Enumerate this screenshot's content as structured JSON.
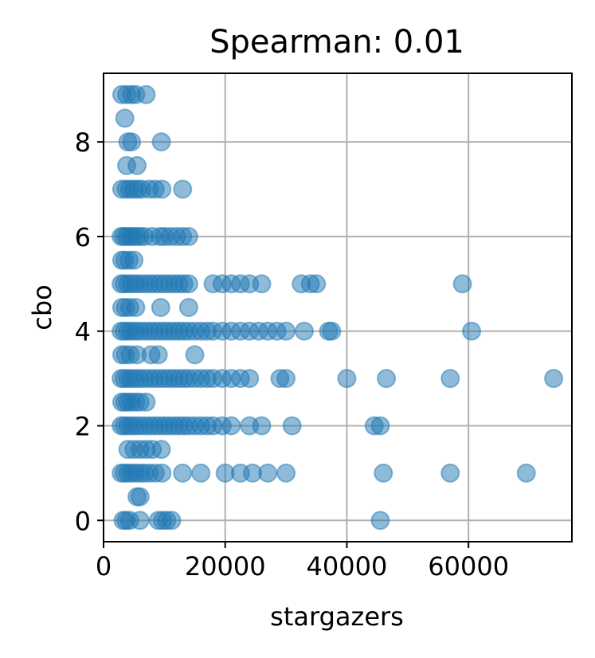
{
  "chart_data": {
    "type": "scatter",
    "title": "Spearman: 0.01",
    "xlabel": "stargazers",
    "ylabel": "cbo",
    "xlim": [
      0,
      77000
    ],
    "ylim": [
      -0.45,
      9.45
    ],
    "xticks": [
      0,
      20000,
      40000,
      60000
    ],
    "xtick_labels": [
      "0",
      "20000",
      "40000",
      "60000"
    ],
    "yticks": [
      0,
      2,
      4,
      6,
      8
    ],
    "ytick_labels": [
      "0",
      "2",
      "4",
      "6",
      "8"
    ],
    "grid": true,
    "marker_color": "#1f77b4",
    "marker_alpha": 0.5,
    "series": [
      {
        "points": [
          [
            3000,
            9
          ],
          [
            3800,
            9
          ],
          [
            4600,
            9
          ],
          [
            5300,
            9
          ],
          [
            7000,
            9
          ],
          [
            3500,
            8.5
          ],
          [
            4000,
            8
          ],
          [
            4600,
            8
          ],
          [
            9500,
            8
          ],
          [
            3800,
            7.5
          ],
          [
            5500,
            7.5
          ],
          [
            3000,
            7
          ],
          [
            3700,
            7
          ],
          [
            4300,
            7
          ],
          [
            5000,
            7
          ],
          [
            5600,
            7
          ],
          [
            6300,
            7
          ],
          [
            7500,
            7
          ],
          [
            8500,
            7
          ],
          [
            9600,
            7
          ],
          [
            13000,
            7
          ],
          [
            2900,
            6
          ],
          [
            3300,
            6
          ],
          [
            3800,
            6
          ],
          [
            4300,
            6
          ],
          [
            4800,
            6
          ],
          [
            5400,
            6
          ],
          [
            6000,
            6
          ],
          [
            6700,
            6
          ],
          [
            8000,
            6
          ],
          [
            9300,
            6
          ],
          [
            10000,
            6
          ],
          [
            11000,
            6
          ],
          [
            12000,
            6
          ],
          [
            13000,
            6
          ],
          [
            14000,
            6
          ],
          [
            3000,
            5.5
          ],
          [
            3500,
            5.5
          ],
          [
            4200,
            5.5
          ],
          [
            5000,
            5.5
          ],
          [
            2900,
            5
          ],
          [
            3400,
            5
          ],
          [
            4000,
            5
          ],
          [
            4600,
            5
          ],
          [
            5300,
            5
          ],
          [
            6000,
            5
          ],
          [
            6800,
            5
          ],
          [
            7600,
            5
          ],
          [
            8400,
            5
          ],
          [
            9200,
            5
          ],
          [
            10000,
            5
          ],
          [
            10800,
            5
          ],
          [
            11600,
            5
          ],
          [
            12400,
            5
          ],
          [
            13200,
            5
          ],
          [
            14000,
            5
          ],
          [
            18000,
            5
          ],
          [
            19500,
            5
          ],
          [
            21000,
            5
          ],
          [
            22500,
            5
          ],
          [
            24000,
            5
          ],
          [
            26000,
            5
          ],
          [
            32500,
            5
          ],
          [
            34000,
            5
          ],
          [
            35000,
            5
          ],
          [
            59000,
            5
          ],
          [
            3000,
            4.5
          ],
          [
            3600,
            4.5
          ],
          [
            4300,
            4.5
          ],
          [
            5300,
            4.5
          ],
          [
            9400,
            4.5
          ],
          [
            14000,
            4.5
          ],
          [
            2900,
            4
          ],
          [
            3400,
            4
          ],
          [
            4000,
            4
          ],
          [
            4600,
            4
          ],
          [
            5300,
            4
          ],
          [
            6000,
            4
          ],
          [
            6800,
            4
          ],
          [
            7600,
            4
          ],
          [
            8400,
            4
          ],
          [
            9200,
            4
          ],
          [
            10000,
            4
          ],
          [
            10800,
            4
          ],
          [
            11600,
            4
          ],
          [
            12400,
            4
          ],
          [
            13200,
            4
          ],
          [
            14000,
            4
          ],
          [
            15000,
            4
          ],
          [
            16000,
            4
          ],
          [
            17000,
            4
          ],
          [
            18000,
            4
          ],
          [
            19500,
            4
          ],
          [
            21000,
            4
          ],
          [
            22500,
            4
          ],
          [
            24000,
            4
          ],
          [
            25500,
            4
          ],
          [
            27000,
            4
          ],
          [
            28500,
            4
          ],
          [
            30000,
            4
          ],
          [
            33000,
            4
          ],
          [
            37000,
            4
          ],
          [
            37500,
            4
          ],
          [
            60500,
            4
          ],
          [
            3000,
            3.5
          ],
          [
            3600,
            3.5
          ],
          [
            4400,
            3.5
          ],
          [
            5500,
            3.5
          ],
          [
            7800,
            3.5
          ],
          [
            9000,
            3.5
          ],
          [
            15000,
            3.5
          ],
          [
            2900,
            3
          ],
          [
            3400,
            3
          ],
          [
            4000,
            3
          ],
          [
            4600,
            3
          ],
          [
            5300,
            3
          ],
          [
            6000,
            3
          ],
          [
            6800,
            3
          ],
          [
            7600,
            3
          ],
          [
            8400,
            3
          ],
          [
            9200,
            3
          ],
          [
            10000,
            3
          ],
          [
            10800,
            3
          ],
          [
            11600,
            3
          ],
          [
            12400,
            3
          ],
          [
            13200,
            3
          ],
          [
            14000,
            3
          ],
          [
            15000,
            3
          ],
          [
            16000,
            3
          ],
          [
            17000,
            3
          ],
          [
            18000,
            3
          ],
          [
            19500,
            3
          ],
          [
            21000,
            3
          ],
          [
            22500,
            3
          ],
          [
            24000,
            3
          ],
          [
            29000,
            3
          ],
          [
            30000,
            3
          ],
          [
            40000,
            3
          ],
          [
            46500,
            3
          ],
          [
            57000,
            3
          ],
          [
            74000,
            3
          ],
          [
            3000,
            2.5
          ],
          [
            3500,
            2.5
          ],
          [
            4000,
            2.5
          ],
          [
            4600,
            2.5
          ],
          [
            5300,
            2.5
          ],
          [
            6000,
            2.5
          ],
          [
            7000,
            2.5
          ],
          [
            2900,
            2
          ],
          [
            3400,
            2
          ],
          [
            4000,
            2
          ],
          [
            4600,
            2
          ],
          [
            5300,
            2
          ],
          [
            6000,
            2
          ],
          [
            6800,
            2
          ],
          [
            7600,
            2
          ],
          [
            8400,
            2
          ],
          [
            9200,
            2
          ],
          [
            10000,
            2
          ],
          [
            10800,
            2
          ],
          [
            11600,
            2
          ],
          [
            12400,
            2
          ],
          [
            13200,
            2
          ],
          [
            14000,
            2
          ],
          [
            15000,
            2
          ],
          [
            16000,
            2
          ],
          [
            17000,
            2
          ],
          [
            18000,
            2
          ],
          [
            19500,
            2
          ],
          [
            21000,
            2
          ],
          [
            24000,
            2
          ],
          [
            26000,
            2
          ],
          [
            31000,
            2
          ],
          [
            44500,
            2
          ],
          [
            45500,
            2
          ],
          [
            4000,
            1.5
          ],
          [
            5000,
            1.5
          ],
          [
            6000,
            1.5
          ],
          [
            7000,
            1.5
          ],
          [
            8000,
            1.5
          ],
          [
            9500,
            1.5
          ],
          [
            2900,
            1
          ],
          [
            3400,
            1
          ],
          [
            4000,
            1
          ],
          [
            4600,
            1
          ],
          [
            5300,
            1
          ],
          [
            6000,
            1
          ],
          [
            6700,
            1
          ],
          [
            7500,
            1
          ],
          [
            8500,
            1
          ],
          [
            9600,
            1
          ],
          [
            13000,
            1
          ],
          [
            16000,
            1
          ],
          [
            20000,
            1
          ],
          [
            22500,
            1
          ],
          [
            24500,
            1
          ],
          [
            27000,
            1
          ],
          [
            30000,
            1
          ],
          [
            46000,
            1
          ],
          [
            57000,
            1
          ],
          [
            69500,
            1
          ],
          [
            5500,
            0.5
          ],
          [
            6000,
            0.5
          ],
          [
            3200,
            0
          ],
          [
            3700,
            0
          ],
          [
            4300,
            0
          ],
          [
            6000,
            0
          ],
          [
            9000,
            0
          ],
          [
            9700,
            0
          ],
          [
            10400,
            0
          ],
          [
            11200,
            0
          ],
          [
            45500,
            0
          ]
        ]
      }
    ]
  }
}
